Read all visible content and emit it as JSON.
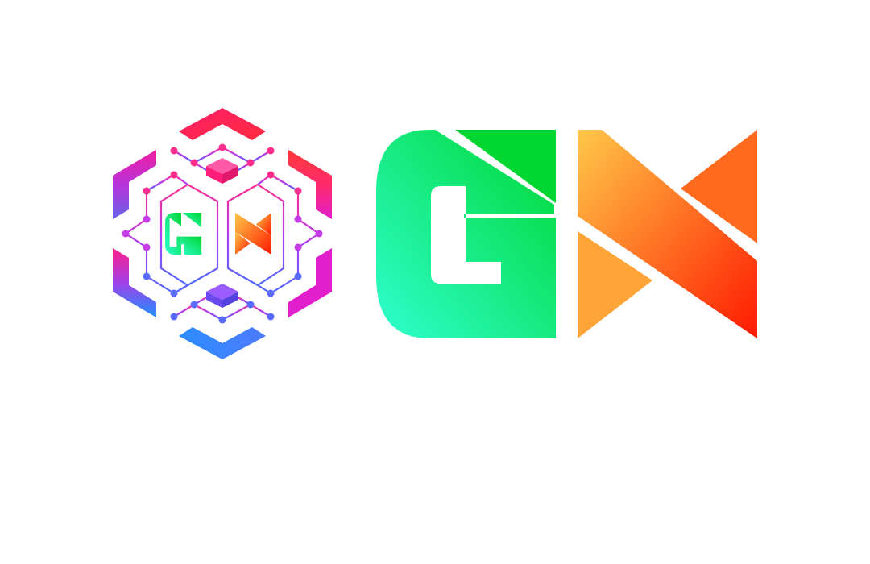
{
  "logo": {
    "lettering": "GN",
    "colors": {
      "g_gradient": [
        "#2effd0",
        "#00d632"
      ],
      "n_gradient": [
        "#ffc848",
        "#ff1a00"
      ],
      "hex_top": [
        "#ff1c68",
        "#ff2d3e"
      ],
      "hex_mid": [
        "#e01ecc",
        "#ff1e8c"
      ],
      "hex_bottom": [
        "#1e90ff",
        "#7a4dff"
      ],
      "network": [
        "#ff2e8e",
        "#b03cf0",
        "#4d6aff"
      ],
      "background": "#ffffff"
    },
    "emblem_icon": "hexagon-network-icon",
    "wordmark_icon": "gn-wordmark-icon"
  }
}
